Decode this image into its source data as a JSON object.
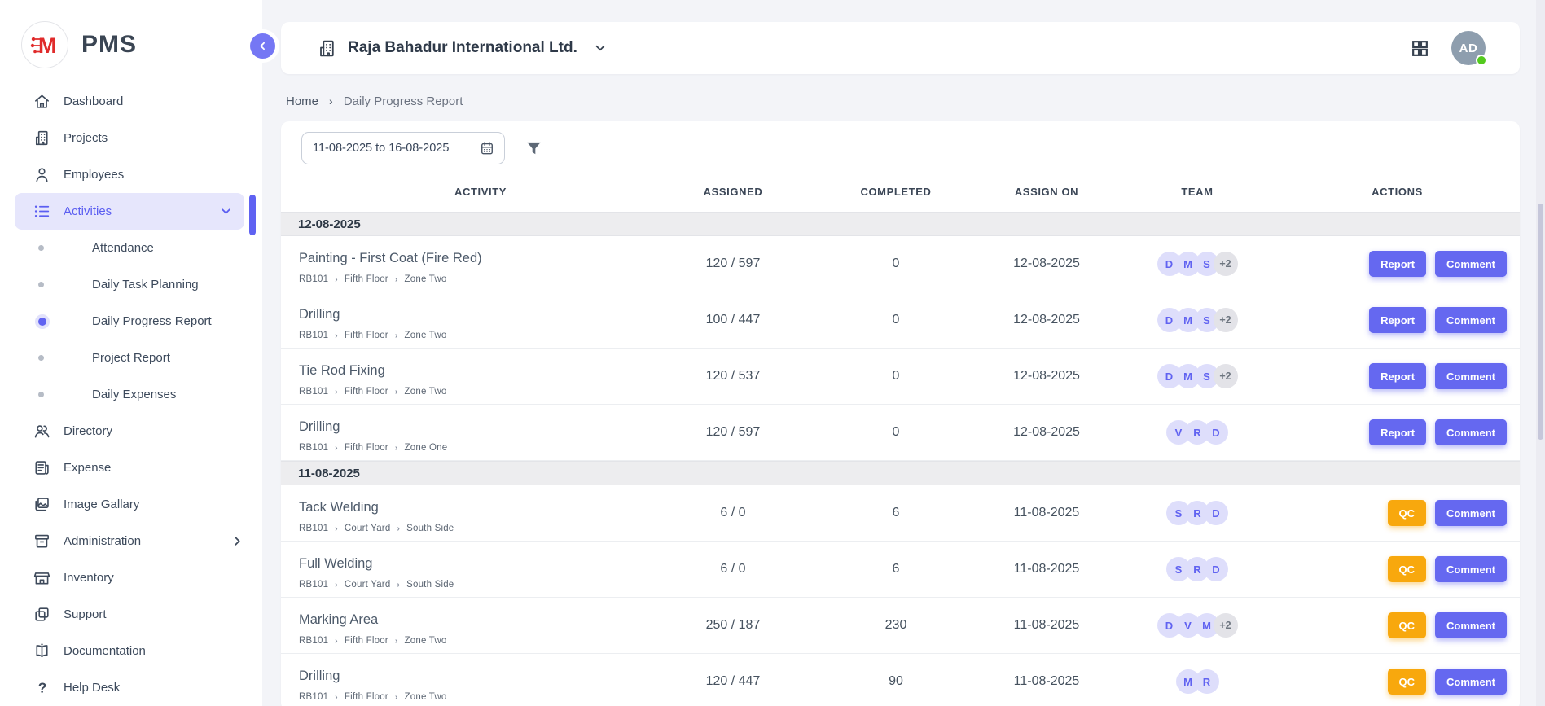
{
  "app": {
    "name": "PMS",
    "logo_letter": "M"
  },
  "colors": {
    "accent_purple": "#6366f1",
    "qc_amber": "#f8a80d",
    "online_green": "#54ca1e",
    "user_avatar_gray": "#8e9eae",
    "team_avatar_lavender": "#dedefb",
    "logo_red": "#e02b2b"
  },
  "sidebar": {
    "items": [
      {
        "type": "item",
        "label": "Dashboard",
        "icon": "home"
      },
      {
        "type": "item",
        "label": "Projects",
        "icon": "building"
      },
      {
        "type": "item",
        "label": "Employees",
        "icon": "person"
      },
      {
        "type": "item",
        "label": "Activities",
        "icon": "list",
        "active": true,
        "trailing": "chevron-down"
      },
      {
        "type": "sub",
        "label": "Attendance"
      },
      {
        "type": "sub",
        "label": "Daily Task Planning"
      },
      {
        "type": "sub",
        "label": "Daily Progress Report",
        "active": true
      },
      {
        "type": "sub",
        "label": "Project Report"
      },
      {
        "type": "sub",
        "label": "Daily Expenses"
      },
      {
        "type": "item",
        "label": "Directory",
        "icon": "people"
      },
      {
        "type": "item",
        "label": "Expense",
        "icon": "receipt"
      },
      {
        "type": "item",
        "label": "Image Gallary",
        "icon": "image"
      },
      {
        "type": "item",
        "label": "Administration",
        "icon": "archive",
        "trailing": "chevron-right"
      },
      {
        "type": "item",
        "label": "Inventory",
        "icon": "store"
      },
      {
        "type": "item",
        "label": "Support",
        "icon": "copy"
      },
      {
        "type": "item",
        "label": "Documentation",
        "icon": "book"
      },
      {
        "type": "item",
        "label": "Help Desk",
        "icon": "question"
      }
    ]
  },
  "header": {
    "company": "Raja Bahadur International Ltd.",
    "user_initials": "AD",
    "user_status": "online"
  },
  "breadcrumb": [
    "Home",
    "Daily Progress Report"
  ],
  "filters": {
    "date_range": "11-08-2025 to 16-08-2025"
  },
  "table": {
    "columns": [
      "ACTIVITY",
      "ASSIGNED",
      "COMPLETED",
      "ASSIGN ON",
      "TEAM",
      "ACTIONS"
    ],
    "groups": [
      {
        "date": "12-08-2025",
        "rows": [
          {
            "activity": "Painting - First Coat (Fire Red)",
            "path": [
              "RB101",
              "Fifth Floor",
              "Zone Two"
            ],
            "assigned": "120 / 597",
            "completed": "0",
            "assign_on": "12-08-2025",
            "team": [
              "D",
              "M",
              "S"
            ],
            "team_extra": "+2",
            "actions": [
              "Report",
              "Comment"
            ]
          },
          {
            "activity": "Drilling",
            "path": [
              "RB101",
              "Fifth Floor",
              "Zone Two"
            ],
            "assigned": "100 / 447",
            "completed": "0",
            "assign_on": "12-08-2025",
            "team": [
              "D",
              "M",
              "S"
            ],
            "team_extra": "+2",
            "actions": [
              "Report",
              "Comment"
            ]
          },
          {
            "activity": "Tie Rod Fixing",
            "path": [
              "RB101",
              "Fifth Floor",
              "Zone Two"
            ],
            "assigned": "120 / 537",
            "completed": "0",
            "assign_on": "12-08-2025",
            "team": [
              "D",
              "M",
              "S"
            ],
            "team_extra": "+2",
            "actions": [
              "Report",
              "Comment"
            ]
          },
          {
            "activity": "Drilling",
            "path": [
              "RB101",
              "Fifth Floor",
              "Zone One"
            ],
            "assigned": "120 / 597",
            "completed": "0",
            "assign_on": "12-08-2025",
            "team": [
              "V",
              "R",
              "D"
            ],
            "team_extra": "",
            "actions": [
              "Report",
              "Comment"
            ]
          }
        ]
      },
      {
        "date": "11-08-2025",
        "rows": [
          {
            "activity": "Tack Welding",
            "path": [
              "RB101",
              "Court Yard",
              "South Side"
            ],
            "assigned": "6 / 0",
            "completed": "6",
            "assign_on": "11-08-2025",
            "team": [
              "S",
              "R",
              "D"
            ],
            "team_extra": "",
            "actions": [
              "QC",
              "Comment"
            ]
          },
          {
            "activity": "Full Welding",
            "path": [
              "RB101",
              "Court Yard",
              "South Side"
            ],
            "assigned": "6 / 0",
            "completed": "6",
            "assign_on": "11-08-2025",
            "team": [
              "S",
              "R",
              "D"
            ],
            "team_extra": "",
            "actions": [
              "QC",
              "Comment"
            ]
          },
          {
            "activity": "Marking Area",
            "path": [
              "RB101",
              "Fifth Floor",
              "Zone Two"
            ],
            "assigned": "250 / 187",
            "completed": "230",
            "assign_on": "11-08-2025",
            "team": [
              "D",
              "V",
              "M"
            ],
            "team_extra": "+2",
            "actions": [
              "QC",
              "Comment"
            ]
          },
          {
            "activity": "Drilling",
            "path": [
              "RB101",
              "Fifth Floor",
              "Zone Two"
            ],
            "assigned": "120 / 447",
            "completed": "90",
            "assign_on": "11-08-2025",
            "team": [
              "M",
              "R"
            ],
            "team_extra": "",
            "actions": [
              "QC",
              "Comment"
            ]
          }
        ]
      }
    ]
  }
}
